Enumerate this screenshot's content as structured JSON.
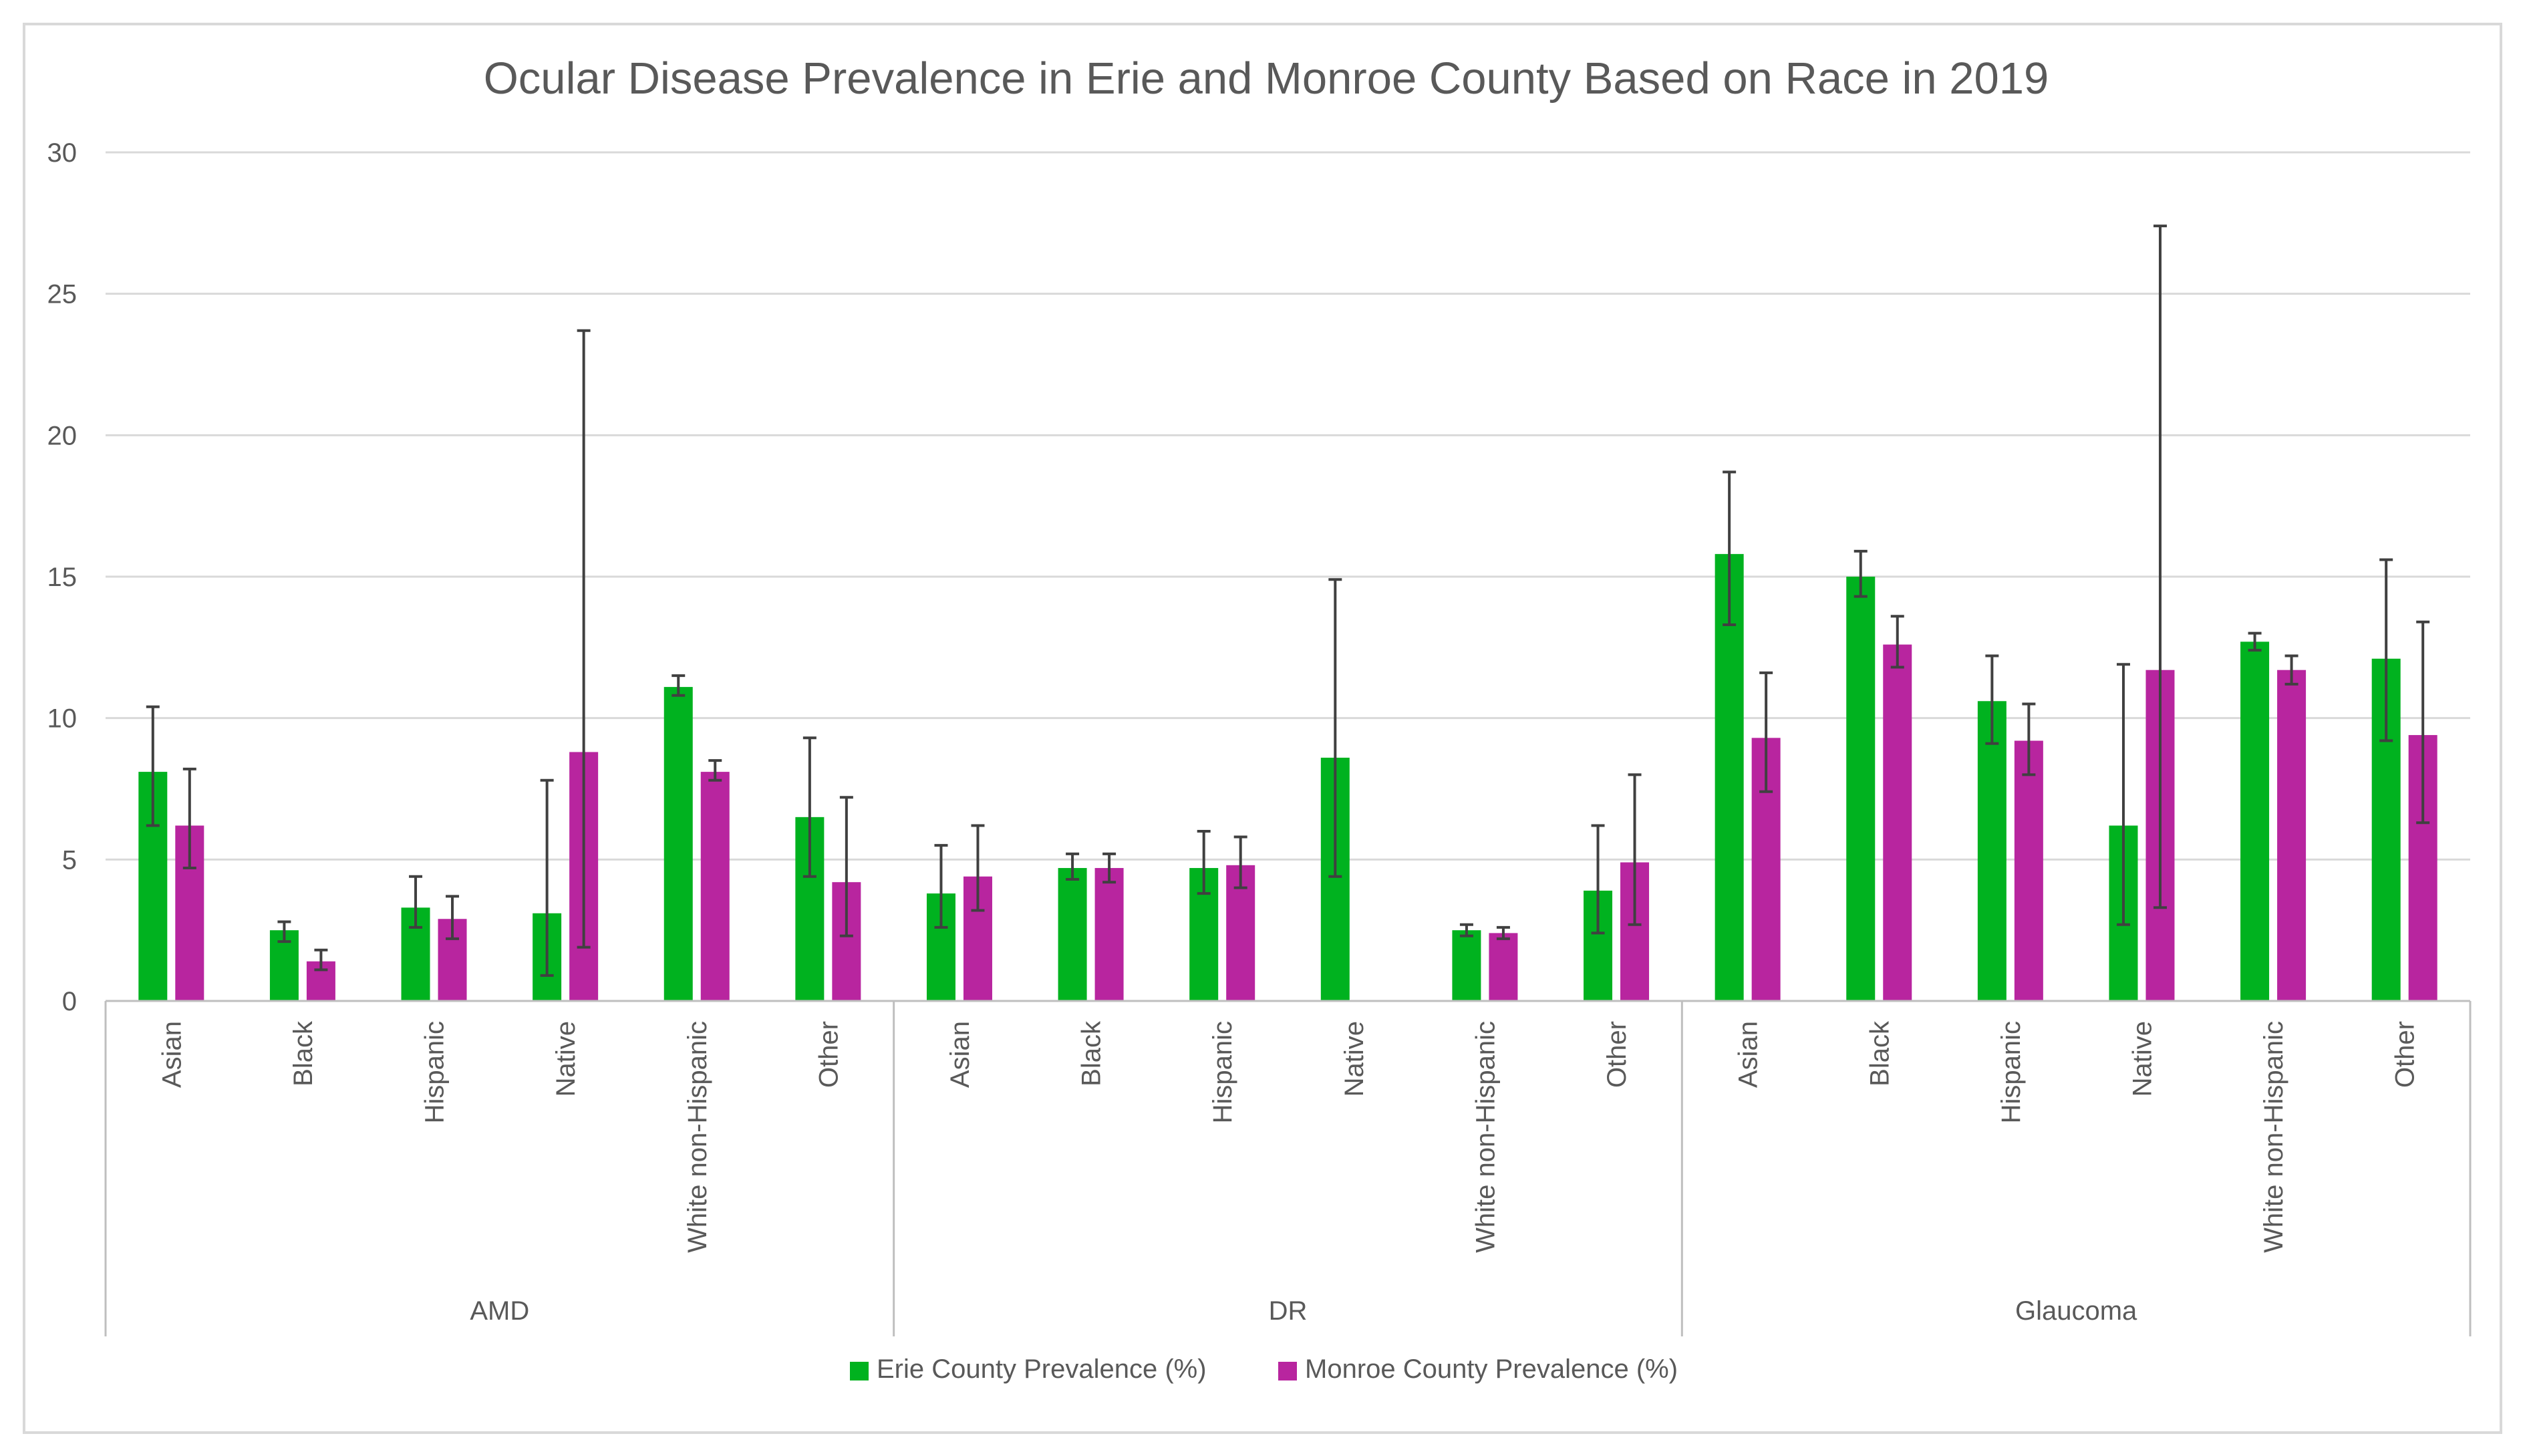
{
  "chart_data": {
    "type": "bar",
    "title": "Ocular Disease Prevalence in Erie and Monroe County Based on Race in 2019",
    "xlabel": "",
    "ylabel": "",
    "ylim": [
      0,
      30
    ],
    "yticks": [
      0,
      5,
      10,
      15,
      20,
      25,
      30
    ],
    "grid": true,
    "legend_position": "bottom",
    "colors": {
      "erie": "#00B21F",
      "monroe": "#B8259F",
      "gridline": "#D9D9D9",
      "axis": "#BFBFBF",
      "error_bar": "#404040",
      "text": "#595959",
      "frame": "#D9D9D9"
    },
    "groups": [
      {
        "name": "AMD",
        "categories": [
          "Asian",
          "Black",
          "Hispanic",
          "Native",
          "White non-Hispanic",
          "Other"
        ]
      },
      {
        "name": "DR",
        "categories": [
          "Asian",
          "Black",
          "Hispanic",
          "Native",
          "White non-Hispanic",
          "Other"
        ]
      },
      {
        "name": "Glaucoma",
        "categories": [
          "Asian",
          "Black",
          "Hispanic",
          "Native",
          "White non-Hispanic",
          "Other"
        ]
      }
    ],
    "series": [
      {
        "name": "Erie County Prevalence (%)",
        "color": "#00B21F",
        "values": [
          8.1,
          2.5,
          3.3,
          3.1,
          11.1,
          6.5,
          3.8,
          4.7,
          4.7,
          8.6,
          2.5,
          3.9,
          15.8,
          15.0,
          10.6,
          6.2,
          12.7,
          12.1
        ],
        "err_low": [
          6.2,
          2.1,
          2.6,
          0.9,
          10.8,
          4.4,
          2.6,
          4.3,
          3.8,
          4.4,
          2.3,
          2.4,
          13.3,
          14.3,
          9.1,
          2.7,
          12.4,
          9.2
        ],
        "err_high": [
          10.4,
          2.8,
          4.4,
          7.8,
          11.5,
          9.3,
          5.5,
          5.2,
          6.0,
          14.9,
          2.7,
          6.2,
          18.7,
          15.9,
          12.2,
          11.9,
          13.0,
          15.6
        ]
      },
      {
        "name": "Monroe County Prevalence (%)",
        "color": "#B8259F",
        "values": [
          6.2,
          1.4,
          2.9,
          8.8,
          8.1,
          4.2,
          4.4,
          4.7,
          4.8,
          null,
          2.4,
          4.9,
          9.3,
          12.6,
          9.2,
          11.7,
          11.7,
          9.4
        ],
        "err_low": [
          4.7,
          1.1,
          2.2,
          1.9,
          7.8,
          2.3,
          3.2,
          4.2,
          4.0,
          null,
          2.2,
          2.7,
          7.4,
          11.8,
          8.0,
          3.3,
          11.2,
          6.3
        ],
        "err_high": [
          8.2,
          1.8,
          3.7,
          23.7,
          8.5,
          7.2,
          6.2,
          5.2,
          5.8,
          null,
          2.6,
          8.0,
          11.6,
          13.6,
          10.5,
          27.4,
          12.2,
          13.4
        ]
      }
    ]
  }
}
